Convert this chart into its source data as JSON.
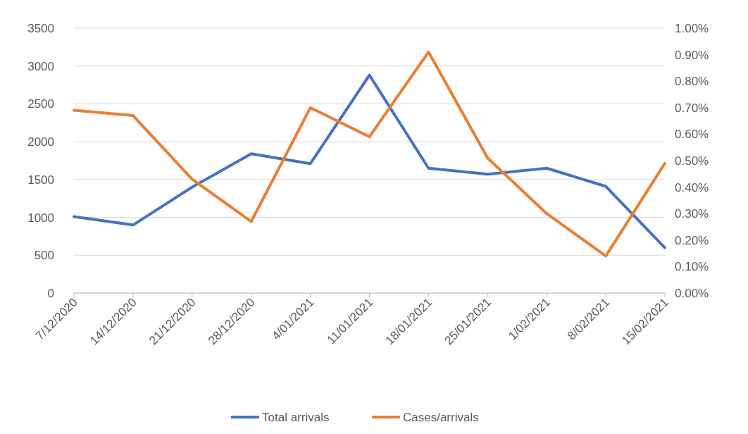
{
  "chart_data": {
    "type": "line",
    "categories": [
      "7/12/2020",
      "14/12/2020",
      "21/12/2020",
      "28/12/2020",
      "4/01/2021",
      "11/01/2021",
      "18/01/2021",
      "25/01/2021",
      "1/02/2021",
      "8/02/2021",
      "15/02/2021"
    ],
    "series": [
      {
        "name": "Total arrivals",
        "color": "#4472c4",
        "values": [
          1010,
          900,
          1400,
          1840,
          1710,
          2880,
          1650,
          1570,
          1650,
          1410,
          600
        ]
      },
      {
        "name": "Cases/arrivals",
        "color": "#ed7d31",
        "axis": "y2",
        "values": [
          0.69,
          0.67,
          0.43,
          0.27,
          0.7,
          0.59,
          0.91,
          0.51,
          0.3,
          0.14,
          0.49
        ]
      }
    ],
    "ylim": [
      0,
      3500
    ],
    "yticks": [
      0,
      500,
      1000,
      1500,
      2000,
      2500,
      3000,
      3500
    ],
    "y2lim": [
      0,
      1
    ],
    "y2ticks": [
      {
        "value": 0,
        "label": "0.00%"
      },
      {
        "value": 0.1,
        "label": "0.10%"
      },
      {
        "value": 0.2,
        "label": "0.20%"
      },
      {
        "value": 0.3,
        "label": "0.30%"
      },
      {
        "value": 0.4,
        "label": "0.40%"
      },
      {
        "value": 0.5,
        "label": "0.50%"
      },
      {
        "value": 0.6,
        "label": "0.60%"
      },
      {
        "value": 0.7,
        "label": "0.70%"
      },
      {
        "value": 0.8,
        "label": "0.80%"
      },
      {
        "value": 0.9,
        "label": "0.90%"
      },
      {
        "value": 1,
        "label": "1.00%"
      }
    ],
    "grid": "y",
    "legend": "bottom",
    "marker": "none",
    "line_style": "solid"
  }
}
